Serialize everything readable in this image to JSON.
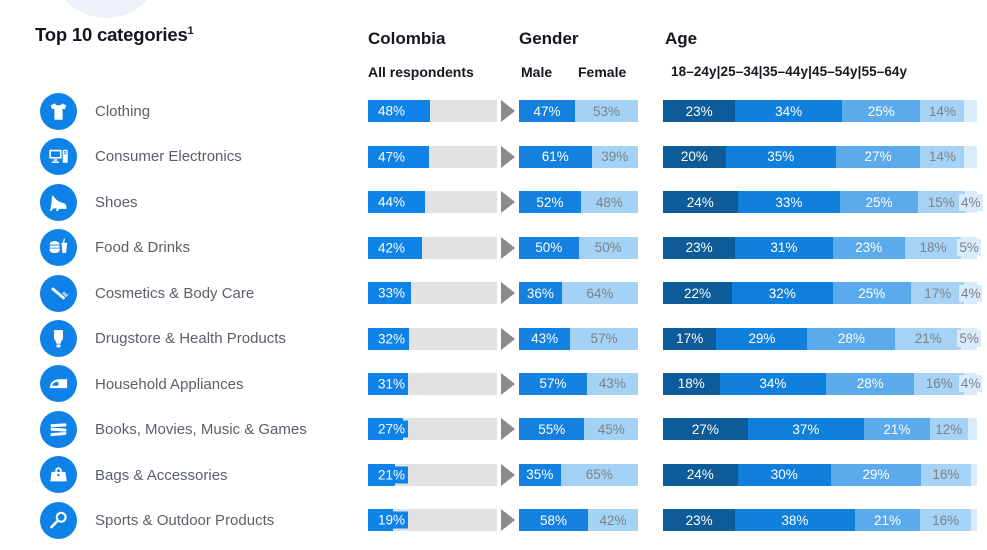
{
  "title": "Top 10 categories",
  "title_sup": "1",
  "columns": {
    "colombia": {
      "header": "Colombia",
      "subheader": "All respondents"
    },
    "gender": {
      "header": "Gender",
      "male_label": "Male",
      "female_label": "Female"
    },
    "age": {
      "header": "Age",
      "scale": "18–24y|25–34|35–44y|45–54y|55–64y"
    }
  },
  "colors": {
    "primary_blue": "#0f82e8",
    "male_blue": "#1480df",
    "female_light_blue": "#a3d2f5",
    "age_palette": [
      "#0d5b99",
      "#1180dd",
      "#5aaaec",
      "#a6d3f5",
      "#daecfb"
    ],
    "track_gray": "#e2e2e2",
    "white_label": "#ffffff",
    "gray_label": "#7b828b",
    "arrow_gray": "#8a8a8a"
  },
  "chart_data": {
    "type": "bar",
    "title": "Top 10 categories¹",
    "unit": "%",
    "categories": [
      "Clothing",
      "Consumer Electronics",
      "Shoes",
      "Food & Drinks",
      "Cosmetics & Body Care",
      "Drugstore & Health Products",
      "Household Appliances",
      "Books, Movies, Music & Games",
      "Bags & Accessories",
      "Sports & Outdoor Products"
    ],
    "icons": [
      "tshirt-icon",
      "computer-icon",
      "high-heel-icon",
      "fast-food-icon",
      "toothbrush-icon",
      "cream-tube-icon",
      "iron-icon",
      "books-icon",
      "handbag-icon",
      "racket-icon"
    ],
    "series": [
      {
        "name": "All respondents",
        "group": "Colombia",
        "values": [
          48,
          47,
          44,
          42,
          33,
          32,
          31,
          27,
          21,
          19
        ]
      },
      {
        "name": "Male",
        "group": "Gender",
        "values": [
          47,
          61,
          52,
          50,
          36,
          43,
          57,
          55,
          35,
          58
        ]
      },
      {
        "name": "Female",
        "group": "Gender",
        "values": [
          53,
          39,
          48,
          50,
          64,
          57,
          43,
          45,
          65,
          42
        ]
      },
      {
        "name": "18–24y",
        "group": "Age",
        "values": [
          23,
          20,
          24,
          23,
          22,
          17,
          18,
          27,
          24,
          23
        ]
      },
      {
        "name": "25–34",
        "group": "Age",
        "values": [
          34,
          35,
          33,
          31,
          32,
          29,
          34,
          37,
          30,
          38
        ]
      },
      {
        "name": "35–44y",
        "group": "Age",
        "values": [
          25,
          27,
          25,
          23,
          25,
          28,
          28,
          21,
          29,
          21
        ]
      },
      {
        "name": "45–54y",
        "group": "Age",
        "values": [
          14,
          14,
          15,
          18,
          17,
          21,
          16,
          12,
          16,
          16
        ]
      },
      {
        "name": "55–64y",
        "group": "Age",
        "values": [
          4,
          4,
          4,
          5,
          4,
          5,
          4,
          3,
          2,
          2
        ],
        "labeled": [
          false,
          false,
          true,
          true,
          true,
          true,
          true,
          false,
          false,
          false
        ]
      }
    ]
  }
}
